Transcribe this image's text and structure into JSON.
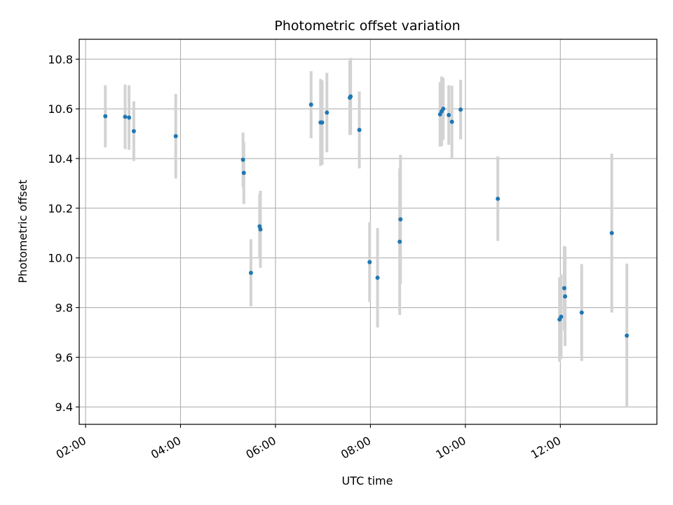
{
  "chart_data": {
    "type": "scatter",
    "title": "Photometric offset variation",
    "xlabel": "UTC time",
    "ylabel": "Photometric offset",
    "x_ticks": [
      "02:00",
      "04:00",
      "06:00",
      "08:00",
      "10:00",
      "12:00"
    ],
    "y_ticks": [
      "9.4",
      "9.6",
      "9.8",
      "10.0",
      "10.2",
      "10.4",
      "10.6",
      "10.8"
    ],
    "xlim": [
      "01:52",
      "14:02"
    ],
    "ylim": [
      9.33,
      10.88
    ],
    "grid": true,
    "marker_color": "#1f77b4",
    "errorbar_color": "#d3d3d3",
    "points": [
      {
        "t": "02:25",
        "y": 10.57,
        "err": 0.125
      },
      {
        "t": "02:50",
        "y": 10.568,
        "err": 0.13
      },
      {
        "t": "02:55",
        "y": 10.565,
        "err": 0.13
      },
      {
        "t": "03:01",
        "y": 10.51,
        "err": 0.12
      },
      {
        "t": "03:54",
        "y": 10.49,
        "err": 0.17
      },
      {
        "t": "05:19",
        "y": 10.395,
        "err": 0.11
      },
      {
        "t": "05:20",
        "y": 10.342,
        "err": 0.125
      },
      {
        "t": "05:29",
        "y": 9.94,
        "err": 0.135
      },
      {
        "t": "05:40",
        "y": 10.127,
        "err": 0.13
      },
      {
        "t": "05:41",
        "y": 10.115,
        "err": 0.155
      },
      {
        "t": "06:45",
        "y": 10.617,
        "err": 0.135
      },
      {
        "t": "06:57",
        "y": 10.545,
        "err": 0.175
      },
      {
        "t": "06:59",
        "y": 10.545,
        "err": 0.17
      },
      {
        "t": "07:05",
        "y": 10.585,
        "err": 0.16
      },
      {
        "t": "07:34",
        "y": 10.645,
        "err": 0.15
      },
      {
        "t": "07:35",
        "y": 10.65,
        "err": 0.155
      },
      {
        "t": "07:46",
        "y": 10.515,
        "err": 0.155
      },
      {
        "t": "07:59",
        "y": 9.983,
        "err": 0.16
      },
      {
        "t": "08:09",
        "y": 9.92,
        "err": 0.2
      },
      {
        "t": "08:37",
        "y": 10.065,
        "err": 0.295
      },
      {
        "t": "08:38",
        "y": 10.155,
        "err": 0.26
      },
      {
        "t": "09:28",
        "y": 10.578,
        "err": 0.13
      },
      {
        "t": "09:30",
        "y": 10.59,
        "err": 0.14
      },
      {
        "t": "09:32",
        "y": 10.6,
        "err": 0.125
      },
      {
        "t": "09:39",
        "y": 10.575,
        "err": 0.12
      },
      {
        "t": "09:43",
        "y": 10.548,
        "err": 0.145
      },
      {
        "t": "09:54",
        "y": 10.597,
        "err": 0.12
      },
      {
        "t": "10:41",
        "y": 10.238,
        "err": 0.17
      },
      {
        "t": "11:59",
        "y": 9.752,
        "err": 0.17
      },
      {
        "t": "12:01",
        "y": 9.763,
        "err": 0.17
      },
      {
        "t": "12:05",
        "y": 9.878,
        "err": 0.17
      },
      {
        "t": "12:06",
        "y": 9.845,
        "err": 0.2
      },
      {
        "t": "12:27",
        "y": 9.78,
        "err": 0.195
      },
      {
        "t": "13:05",
        "y": 10.1,
        "err": 0.32
      },
      {
        "t": "13:24",
        "y": 9.687,
        "err": 0.29
      }
    ]
  }
}
